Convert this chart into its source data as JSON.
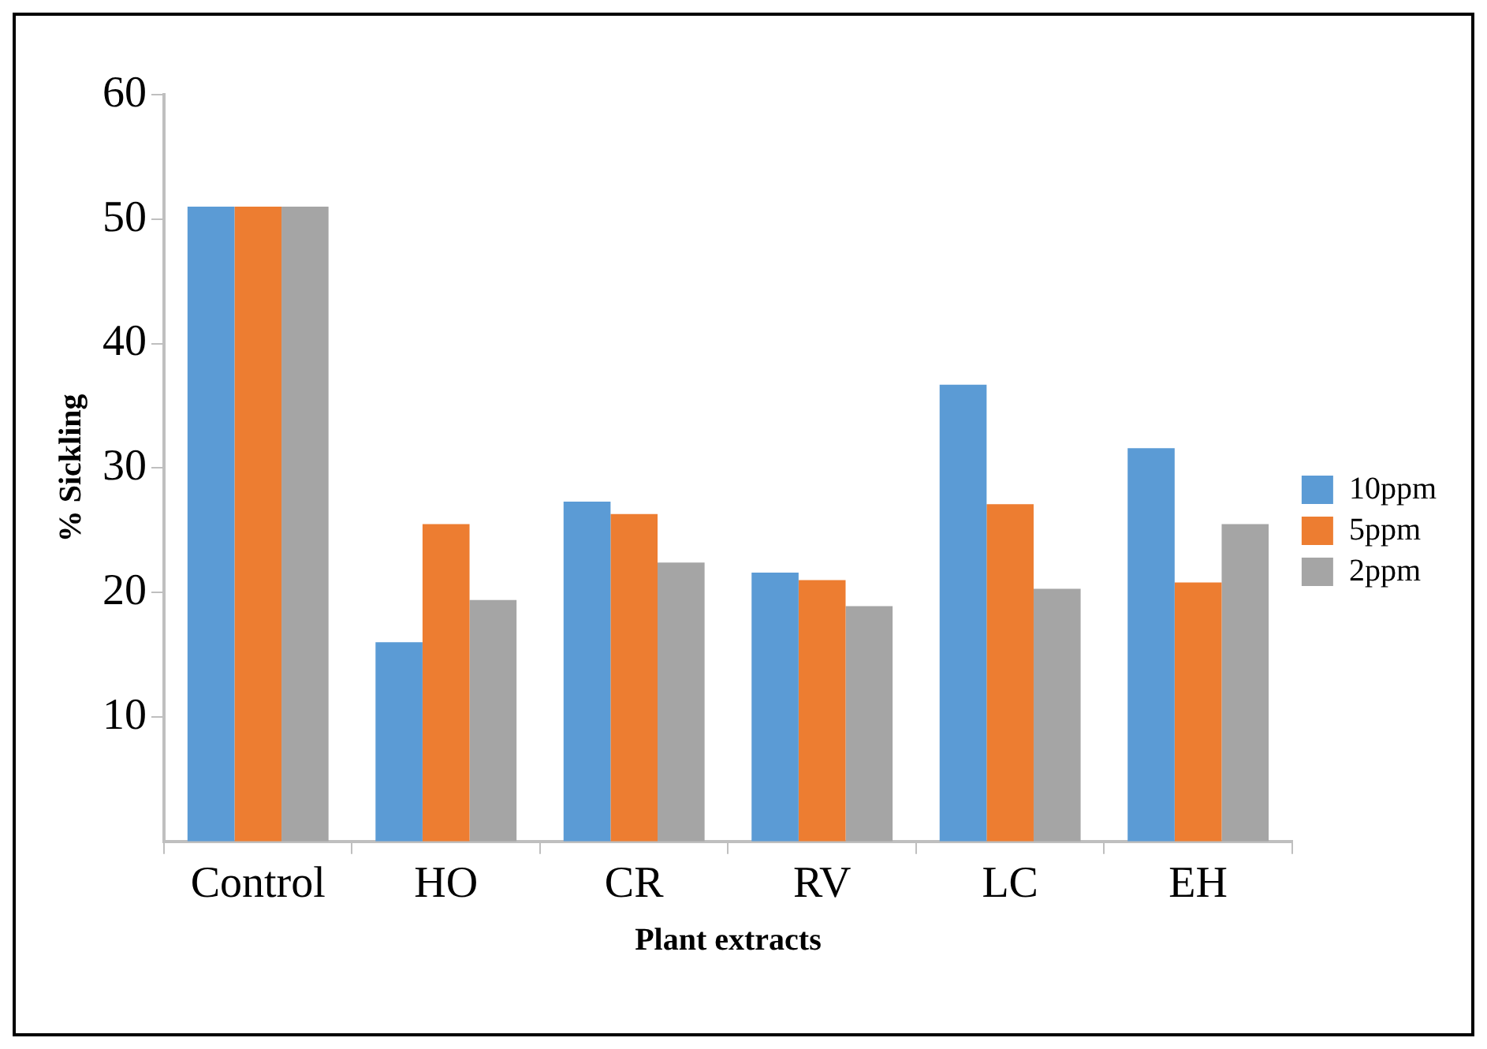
{
  "chart_data": {
    "type": "bar",
    "xlabel": "Plant extracts",
    "ylabel": "% Sickling",
    "categories": [
      "Control",
      "HO",
      "CR",
      "RV",
      "LC",
      "EH"
    ],
    "series": [
      {
        "name": "10ppm",
        "color": "#5b9bd5",
        "values": [
          51.0,
          16.0,
          27.3,
          21.6,
          36.7,
          31.6
        ]
      },
      {
        "name": "5ppm",
        "color": "#ed7d31",
        "values": [
          51.0,
          25.5,
          26.3,
          21.0,
          27.1,
          20.8
        ]
      },
      {
        "name": "2ppm",
        "color": "#a5a5a5",
        "values": [
          51.0,
          19.4,
          22.4,
          18.9,
          20.3,
          25.5
        ]
      }
    ],
    "ylim": [
      0,
      60
    ],
    "yticks": [
      10,
      20,
      30,
      40,
      50,
      60
    ],
    "grid": false,
    "legend": "right"
  }
}
